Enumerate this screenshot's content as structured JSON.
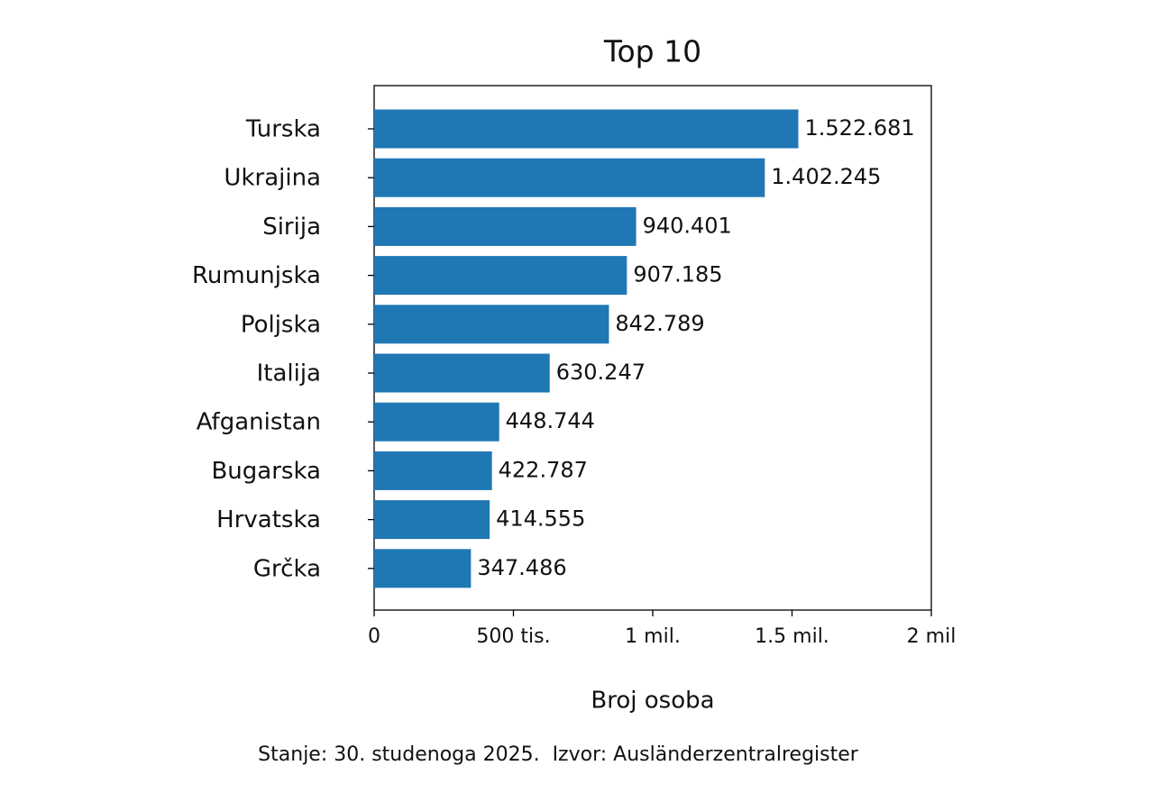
{
  "chart_data": {
    "type": "bar",
    "orientation": "horizontal",
    "title": "Top 10",
    "categories": [
      "Turska",
      "Ukrajina",
      "Sirija",
      "Rumunjska",
      "Poljska",
      "Italija",
      "Afganistan",
      "Bugarska",
      "Hrvatska",
      "Grčka"
    ],
    "values": [
      1522681,
      1402245,
      940401,
      907185,
      842789,
      630247,
      448744,
      422787,
      414555,
      347486
    ],
    "value_labels": [
      "1.522.681",
      "1.402.245",
      "940.401",
      "907.185",
      "842.789",
      "630.247",
      "448.744",
      "422.787",
      "414.555",
      "347.486"
    ],
    "color": "#1f77b4",
    "xlim": [
      0,
      2000000
    ],
    "xticks": [
      0,
      {
        "value": 500000,
        "label": "500 tis."
      },
      {
        "value": 1000000,
        "label": "1 mil."
      },
      {
        "value": 1500000,
        "label": "1.5 mil."
      },
      {
        "value": 2000000,
        "label": "2 mil"
      }
    ],
    "xlabel": "Broj osoba",
    "footnote": "Stanje: 30. studenoga 2025.  Izvor: Ausländerzentralregister"
  }
}
